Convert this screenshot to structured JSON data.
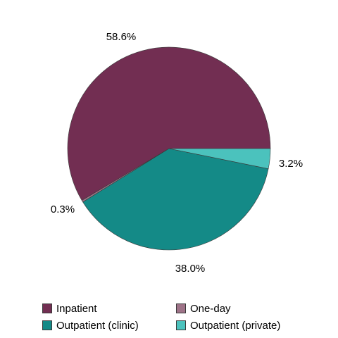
{
  "chart_data": {
    "type": "pie",
    "categories": [
      "Inpatient",
      "One-day",
      "Outpatient (clinic)",
      "Outpatient (private)"
    ],
    "values": [
      58.6,
      0.3,
      38.0,
      3.2
    ],
    "value_labels": [
      "58.6%",
      "0.3%",
      "38.0%",
      "3.2%"
    ],
    "colors": [
      "#722e52",
      "#9e7388",
      "#148a87",
      "#4bc2bd"
    ],
    "start_angle": "3 o'clock, counter-clockwise",
    "legend_position": "bottom",
    "title": ""
  }
}
